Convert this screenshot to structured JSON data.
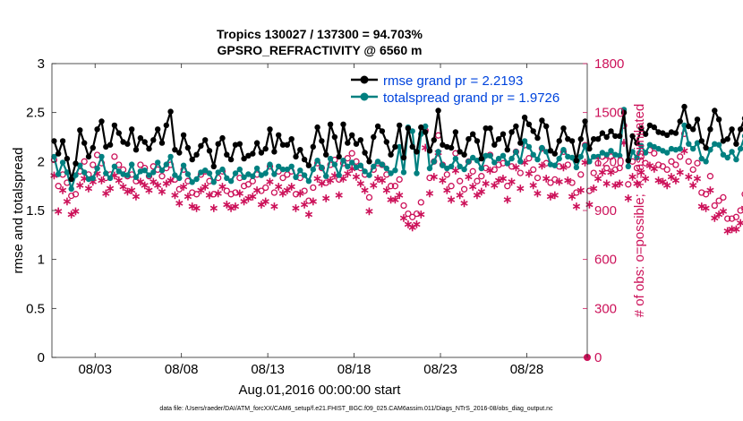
{
  "chart_data": {
    "type": "line",
    "title_line1": "Tropics 130027 / 137300 = 94.703%",
    "title_line2": "GPSRO_REFRACTIVITY @ 6560 m",
    "xlabel": "Aug.01,2016 00:00:00 start",
    "ylabel_left": "rmse and totalspread",
    "ylabel_right": "# of obs: o=possible; ∗=assimilated",
    "footnote": "data file: /Users/raeder/DAI/ATM_forcXX/CAM6_setup/f.e21.FHIST_BGC.f09_025.CAM6assim.011/Diags_NTrS_2016-08/obs_diag_output.nc",
    "x_range": [
      0.5,
      31.5
    ],
    "ylim_left": [
      0,
      3
    ],
    "ylim_right": [
      0,
      1800
    ],
    "left_ticks": [
      "0",
      "0.5",
      "1",
      "1.5",
      "2",
      "2.5",
      "3"
    ],
    "right_ticks": [
      "0",
      "300",
      "600",
      "900",
      "1200",
      "1500",
      "1800"
    ],
    "x_ticks": [
      {
        "day": 3,
        "label": "08/03"
      },
      {
        "day": 8,
        "label": "08/08"
      },
      {
        "day": 13,
        "label": "08/13"
      },
      {
        "day": 18,
        "label": "08/18"
      },
      {
        "day": 23,
        "label": "08/23"
      },
      {
        "day": 28,
        "label": "08/28"
      }
    ],
    "x_start_day": 0.625,
    "x_step_days": 0.25,
    "legend": {
      "position": "top-right",
      "entries": [
        "rmse grand pr = 2.2193",
        "totalspread grand pr = 1.9726"
      ]
    },
    "colors": {
      "rmse": "#000000",
      "totalspread": "#008080",
      "obs": "#cc1159",
      "legend_text": "#0044dd"
    },
    "series": [
      {
        "name": "rmse grand pr = 2.2193",
        "axis": "left",
        "values": [
          2.21,
          2.08,
          2.21,
          2.03,
          1.82,
          1.98,
          2.32,
          2.19,
          2.05,
          2.14,
          2.33,
          2.41,
          2.15,
          2.17,
          2.37,
          2.29,
          2.2,
          2.18,
          2.33,
          2.12,
          2.24,
          2.2,
          2.13,
          2.22,
          2.33,
          2.19,
          2.37,
          2.51,
          2.12,
          2.09,
          2.27,
          2.14,
          2.02,
          2.07,
          2.16,
          2.22,
          2.11,
          1.95,
          2.18,
          2.24,
          2.07,
          2.02,
          2.17,
          2.18,
          2.03,
          2.06,
          2.08,
          2.19,
          2.09,
          2.13,
          2.33,
          2.1,
          2.27,
          2.17,
          2.17,
          2.23,
          2.05,
          2.12,
          2.02,
          1.96,
          2.15,
          2.35,
          2.21,
          2.07,
          2.38,
          2.25,
          2.05,
          2.38,
          2.19,
          2.27,
          2.18,
          2.22,
          2.09,
          2.0,
          2.25,
          2.36,
          2.31,
          2.2,
          2.07,
          2.15,
          2.37,
          2.04,
          2.34,
          2.15,
          2.1,
          2.35,
          2.3,
          2.11,
          2.22,
          2.52,
          2.17,
          2.15,
          2.14,
          2.3,
          2.1,
          2.07,
          2.23,
          2.28,
          2.21,
          2.03,
          2.34,
          2.34,
          2.17,
          2.23,
          2.28,
          2.12,
          2.3,
          2.36,
          2.19,
          2.45,
          2.38,
          2.31,
          2.24,
          2.42,
          2.36,
          2.11,
          2.08,
          2.21,
          2.34,
          2.23,
          2.21,
          2.01,
          2.23,
          2.41,
          2.13,
          2.23,
          2.23,
          2.29,
          2.25,
          2.31,
          2.26,
          2.26,
          2.5,
          2.01,
          2.26,
          2.19,
          2.34,
          2.28,
          2.37,
          2.35,
          2.3,
          2.29,
          2.27,
          2.3,
          2.29,
          2.41,
          2.56,
          2.36,
          2.33,
          2.43,
          2.21,
          2.14,
          2.33,
          2.52,
          2.43,
          2.21,
          2.23,
          2.33,
          2.18,
          2.33,
          2.44,
          2.34,
          2.33,
          2.4,
          2.44
        ]
      },
      {
        "name": "totalspread grand pr = 1.9726",
        "axis": "left",
        "values": [
          2.05,
          1.87,
          1.99,
          1.89,
          1.72,
          1.86,
          1.96,
          1.89,
          1.82,
          1.83,
          1.93,
          2.05,
          1.88,
          1.83,
          1.95,
          1.9,
          1.87,
          1.86,
          1.97,
          1.84,
          1.9,
          1.91,
          1.86,
          1.89,
          1.99,
          1.91,
          1.97,
          2.05,
          1.86,
          1.83,
          1.96,
          1.87,
          1.79,
          1.82,
          1.89,
          1.91,
          1.88,
          1.79,
          1.89,
          1.92,
          1.83,
          1.8,
          1.88,
          1.92,
          1.84,
          1.87,
          1.85,
          1.93,
          1.86,
          1.88,
          1.97,
          1.87,
          1.95,
          1.92,
          1.92,
          1.95,
          1.84,
          1.91,
          1.86,
          1.8,
          1.92,
          2.01,
          1.94,
          1.85,
          2.03,
          1.97,
          1.86,
          2.01,
          1.95,
          1.99,
          1.94,
          1.96,
          1.9,
          1.86,
          1.95,
          2.0,
          1.97,
          1.93,
          1.88,
          1.91,
          2.15,
          1.89,
          2.35,
          2.31,
          1.88,
          2.28,
          2.36,
          1.93,
          2.0,
          2.1,
          1.96,
          1.93,
          1.95,
          2.03,
          1.95,
          1.92,
          2.0,
          2.04,
          2.01,
          1.93,
          2.06,
          2.06,
          1.99,
          2.03,
          2.06,
          1.98,
          2.03,
          2.1,
          2.0,
          2.21,
          2.15,
          2.07,
          2.02,
          2.14,
          2.1,
          1.97,
          1.96,
          2.03,
          2.12,
          2.05,
          2.04,
          1.94,
          2.05,
          2.16,
          2.0,
          2.05,
          2.05,
          2.09,
          2.07,
          2.11,
          2.07,
          2.06,
          2.53,
          1.95,
          2.1,
          2.04,
          2.16,
          2.09,
          2.17,
          2.15,
          2.13,
          2.11,
          2.09,
          2.13,
          2.12,
          2.13,
          2.37,
          2.18,
          2.13,
          2.19,
          2.03,
          2.0,
          2.12,
          2.18,
          2.17,
          2.07,
          2.04,
          2.1,
          2.02,
          2.13,
          2.26,
          2.19,
          2.12,
          2.24,
          2.31
        ]
      },
      {
        "name": "possible obs",
        "axis": "right",
        "marker": "circle",
        "values": [
          1210,
          1050,
          1120,
          1070,
          990,
          1000,
          1140,
          1200,
          1120,
          1180,
          1240,
          1190,
          1100,
          1120,
          1230,
          1180,
          1150,
          1110,
          1120,
          1080,
          1180,
          1160,
          1110,
          1170,
          1150,
          1110,
          1160,
          1180,
          1090,
          1030,
          1150,
          1080,
          1010,
          1000,
          1120,
          1140,
          1080,
          1000,
          1100,
          1140,
          1020,
          1000,
          1010,
          1100,
          1050,
          1060,
          1080,
          1120,
          1020,
          1040,
          1170,
          1010,
          1140,
          1100,
          1120,
          1140,
          1000,
          1100,
          1020,
          960,
          1040,
          1190,
          1160,
          1070,
          1180,
          1210,
          1090,
          1190,
          1220,
          1250,
          1200,
          1160,
          1120,
          980,
          1150,
          1190,
          1180,
          1120,
          1050,
          1050,
          1090,
          930,
          880,
          860,
          880,
          950,
          1390,
          1100,
          1200,
          1360,
          1180,
          1120,
          1050,
          1250,
          1080,
          1030,
          1200,
          1140,
          1080,
          1110,
          1160,
          1240,
          1150,
          1180,
          1190,
          1050,
          1170,
          1260,
          1130,
          1300,
          1220,
          1150,
          1100,
          1280,
          1190,
          1070,
          1090,
          1170,
          1260,
          1180,
          1070,
          1010,
          1120,
          1300,
          1020,
          1130,
          1190,
          1230,
          1160,
          1230,
          1150,
          1160,
          1420,
          1060,
          1200,
          1160,
          1230,
          1190,
          1270,
          1250,
          1180,
          1170,
          1150,
          1200,
          1180,
          1230,
          1370,
          1200,
          1150,
          1190,
          1010,
          1000,
          1110,
          930,
          960,
          980,
          850,
          850,
          860,
          900,
          1000,
          980,
          850,
          900,
          800
        ]
      },
      {
        "name": "assimilated obs",
        "axis": "right",
        "marker": "asterisk",
        "values": [
          1120,
          900,
          1030,
          960,
          880,
          900,
          1060,
          1100,
          1040,
          1080,
          1130,
          1090,
          1010,
          1040,
          1120,
          1090,
          1050,
          1020,
          1030,
          990,
          1080,
          1060,
          1030,
          1080,
          1060,
          1020,
          1070,
          1090,
          1000,
          950,
          1050,
          990,
          930,
          920,
          1030,
          1050,
          1000,
          920,
          1010,
          1050,
          940,
          920,
          930,
          1010,
          960,
          980,
          990,
          1030,
          940,
          960,
          1080,
          930,
          1050,
          1010,
          1030,
          1050,
          920,
          1010,
          940,
          880,
          960,
          1100,
          1070,
          980,
          1090,
          1120,
          1000,
          1100,
          1130,
          1160,
          1110,
          1070,
          1030,
          900,
          1060,
          1100,
          1090,
          1030,
          970,
          970,
          1000,
          860,
          820,
          800,
          820,
          880,
          1290,
          1010,
          1110,
          1260,
          1090,
          1030,
          970,
          1150,
          1000,
          950,
          1110,
          1050,
          1000,
          1020,
          1070,
          1150,
          1060,
          1090,
          1100,
          970,
          1080,
          1170,
          1040,
          1200,
          1130,
          1060,
          1010,
          1180,
          1100,
          990,
          1000,
          1080,
          1170,
          1090,
          990,
          930,
          1030,
          1200,
          940,
          1040,
          1100,
          1140,
          1070,
          1140,
          1060,
          1070,
          1320,
          980,
          1110,
          1070,
          1140,
          1100,
          1180,
          1160,
          1090,
          1080,
          1060,
          1110,
          1090,
          1140,
          1270,
          1110,
          1060,
          1100,
          930,
          920,
          1030,
          860,
          880,
          900,
          780,
          790,
          790,
          830,
          920,
          900,
          790,
          830,
          740
        ]
      }
    ]
  }
}
